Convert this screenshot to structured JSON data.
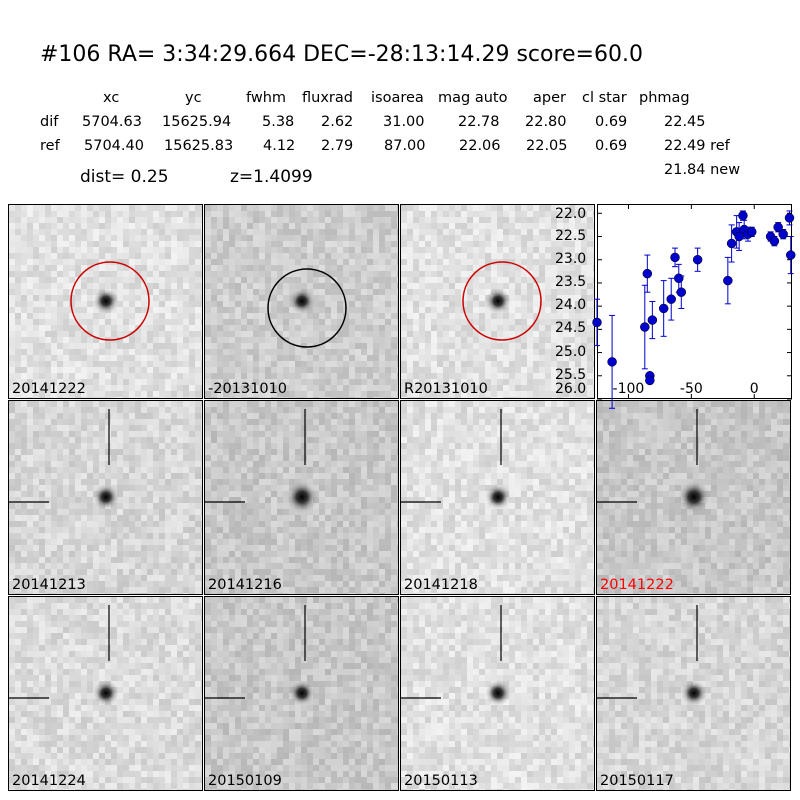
{
  "header": {
    "title": "#106   RA= 3:34:29.664 DEC=-28:13:14.29       score=60.0",
    "columns": [
      "xc",
      "yc",
      "fwhm",
      "fluxrad",
      "isoarea",
      "mag auto",
      "aper",
      "cl star",
      "phmag"
    ],
    "rows": [
      {
        "label": "dif",
        "values": [
          "5704.63",
          "15625.94",
          "5.38",
          "2.62",
          "31.00",
          "22.78",
          "22.80",
          "0.69",
          "22.45"
        ]
      },
      {
        "label": "ref",
        "values": [
          "5704.40",
          "15625.83",
          "4.12",
          "2.79",
          "87.00",
          "22.06",
          "22.05",
          "0.69",
          "22.49 ref"
        ]
      }
    ],
    "phmag_new": "21.84 new",
    "dist": "dist=  0.25",
    "z": "z=1.4099"
  },
  "panels": [
    {
      "label": "20141222",
      "bg": 225,
      "circle": "#cc0000",
      "red_label": false
    },
    {
      "label": "-20131010",
      "bg": 205,
      "circle": "#000000",
      "red_label": false
    },
    {
      "label": "R20131010",
      "bg": 225,
      "circle": "#cc0000",
      "red_label": false
    },
    {
      "label": "20141213",
      "bg": 215,
      "circle": "",
      "red_label": false
    },
    {
      "label": "20141216",
      "bg": 200,
      "circle": "",
      "red_label": false
    },
    {
      "label": "20141218",
      "bg": 225,
      "circle": "",
      "red_label": false
    },
    {
      "label": "20141222",
      "bg": 200,
      "circle": "",
      "red_label": true
    },
    {
      "label": "20141224",
      "bg": 220,
      "circle": "",
      "red_label": false
    },
    {
      "label": "20150109",
      "bg": 200,
      "circle": "",
      "red_label": false
    },
    {
      "label": "20150113",
      "bg": 225,
      "circle": "",
      "red_label": false
    },
    {
      "label": "20150117",
      "bg": 215,
      "circle": "",
      "red_label": false
    }
  ],
  "chart_data": {
    "type": "scatter",
    "title": "",
    "xlabel": "",
    "ylabel": "",
    "xlim": [
      -125,
      30
    ],
    "ylim": [
      26.0,
      21.8
    ],
    "y_inverted": true,
    "x_ticks": [
      -100,
      -50,
      0
    ],
    "y_ticks": [
      22.0,
      22.5,
      23.0,
      23.5,
      24.0,
      24.5,
      25.0,
      25.5,
      26.0
    ],
    "grid": false,
    "marker_color": "#0000cc",
    "points": [
      {
        "x": -125,
        "y": 24.35,
        "err": 0.5
      },
      {
        "x": -113,
        "y": 25.2,
        "err": 1.0
      },
      {
        "x": -87,
        "y": 24.45,
        "err": 0.9
      },
      {
        "x": -85,
        "y": 23.3,
        "err": 0.4
      },
      {
        "x": -83,
        "y": 25.5,
        "err": 0.05
      },
      {
        "x": -83,
        "y": 25.6,
        "err": 0.05
      },
      {
        "x": -81,
        "y": 24.3,
        "err": 0.4
      },
      {
        "x": -72,
        "y": 24.05,
        "err": 0.6
      },
      {
        "x": -66,
        "y": 23.85,
        "err": 0.45
      },
      {
        "x": -63,
        "y": 22.95,
        "err": 0.2
      },
      {
        "x": -60,
        "y": 23.4,
        "err": 0.3
      },
      {
        "x": -58,
        "y": 23.7,
        "err": 0.35
      },
      {
        "x": -45,
        "y": 23.0,
        "err": 0.25
      },
      {
        "x": -21,
        "y": 23.45,
        "err": 0.5
      },
      {
        "x": -18,
        "y": 22.65,
        "err": 0.4
      },
      {
        "x": -14,
        "y": 22.4,
        "err": 0.35
      },
      {
        "x": -12,
        "y": 22.5,
        "err": 0.3
      },
      {
        "x": -9,
        "y": 22.05,
        "err": 0.1
      },
      {
        "x": -8,
        "y": 22.35,
        "err": 0.2
      },
      {
        "x": -5,
        "y": 22.45,
        "err": 0.15
      },
      {
        "x": -2,
        "y": 22.4,
        "err": 0.1
      },
      {
        "x": 13,
        "y": 22.5,
        "err": 0.1
      },
      {
        "x": 16,
        "y": 22.6,
        "err": 0.1
      },
      {
        "x": 19,
        "y": 22.3,
        "err": 0.1
      },
      {
        "x": 23,
        "y": 22.45,
        "err": 0.1
      },
      {
        "x": 28,
        "y": 22.1,
        "err": 0.15
      },
      {
        "x": 29,
        "y": 22.9,
        "err": 0.4
      }
    ]
  }
}
